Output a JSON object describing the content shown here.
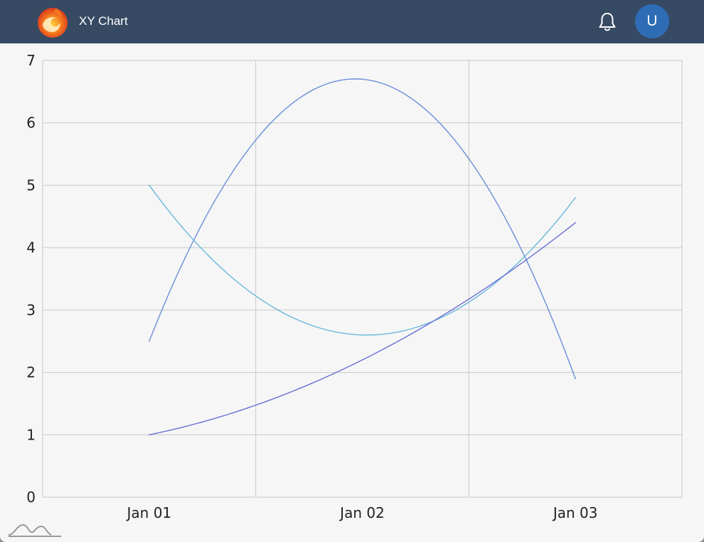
{
  "header": {
    "title": "XY Chart",
    "logo_icon": "phoenix-logo-icon",
    "notification_icon": "bell-icon",
    "avatar_letter": "U"
  },
  "colors": {
    "header_bg": "#364a63",
    "avatar_bg": "#2e6db6",
    "plot_bg": "#f6f6f6",
    "grid": "#c8c8c8"
  },
  "chart_data": {
    "type": "line",
    "title": "",
    "xlabel": "",
    "ylabel": "",
    "x_ticks": [
      "Jan 01",
      "Jan 02",
      "Jan 03"
    ],
    "x": [
      "Jan 01",
      "Jan 02",
      "Jan 03"
    ],
    "xlim": [
      "Dec 31 12:00",
      "Jan 03 12:00"
    ],
    "ylim": [
      0,
      7
    ],
    "y_ticks": [
      0,
      1,
      2,
      3,
      4,
      5,
      6,
      7
    ],
    "grid": true,
    "legend": "none",
    "series": [
      {
        "color": "#6a8ed9",
        "values": [
          2.5,
          6.7,
          1.9
        ],
        "peak_at": "Jan 02"
      },
      {
        "color": "#6ab8dc",
        "values": [
          5.0,
          2.6,
          4.8
        ],
        "trough_at": "Jan 02"
      },
      {
        "color": "#6a6fd4",
        "values": [
          1.0,
          2.2,
          4.4
        ]
      }
    ]
  },
  "footer": {
    "watermark_icon": "chart-library-watermark-icon"
  }
}
